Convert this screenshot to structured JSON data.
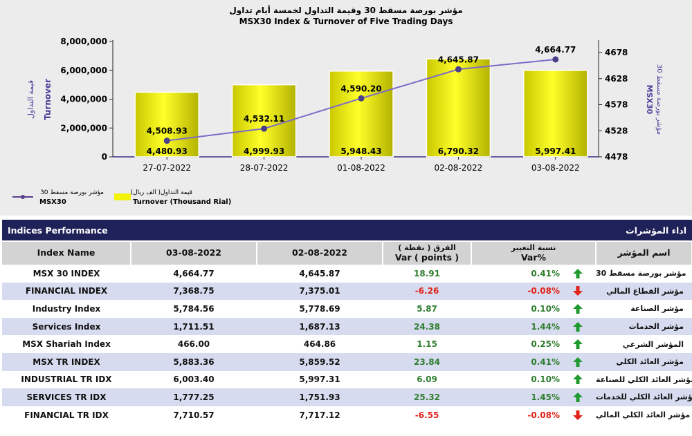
{
  "chart_data": {
    "type": "bar+line",
    "title_ar": "مؤشر بورصة مسقط 30 وقيمة التداول لخمسة أيام تداول",
    "title": "MSX30 Index & Turnover of Five Trading Days",
    "categories": [
      "27-07-2022",
      "28-07-2022",
      "01-08-2022",
      "02-08-2022",
      "03-08-2022"
    ],
    "series": [
      {
        "name": "Turnover (Thousand Rial)",
        "name_ar": "قيمة التداول( الف ريال)",
        "type": "bar",
        "axis": "left",
        "values": [
          4480.93,
          4999.93,
          5948.43,
          6790.32,
          5997.41
        ],
        "labels": [
          "4,480.93",
          "4,999.93",
          "5,948.43",
          "6,790.32",
          "5,997.41"
        ],
        "color": "#f2f20a"
      },
      {
        "name": "MSX30",
        "name_ar": "مؤشر بورصة مسقط 30",
        "type": "line",
        "axis": "right",
        "values": [
          4508.93,
          4532.11,
          4590.2,
          4645.87,
          4664.77
        ],
        "labels": [
          "4,508.93",
          "4,532.11",
          "4,590.20",
          "4,645.87",
          "4,664.77"
        ],
        "color": "#7c6bc9"
      }
    ],
    "left_axis": {
      "label": "Turnover",
      "label_ar": "قيمة التداول",
      "ticks": [
        "8,000,000",
        "6,000,000",
        "4,000,000",
        "2,000,000",
        "0"
      ],
      "tick_values": [
        8000000,
        6000000,
        4000000,
        2000000,
        0
      ]
    },
    "right_axis": {
      "label": "MSX30",
      "label_ar": "مؤشر بورصة مسقط 30",
      "ticks": [
        "4678",
        "4628",
        "4578",
        "4528",
        "4478"
      ],
      "tick_values": [
        4678,
        4628,
        4578,
        4528,
        4478
      ]
    },
    "legend_placement": "bottom-left",
    "grid": false
  },
  "performance": {
    "title_en": "Indices Performance",
    "title_ar": "اداء المؤشرات",
    "columns": {
      "index_name": "Index Name",
      "date1": "03-08-2022",
      "date2": "02-08-2022",
      "var_points_ar": "الفرق ( نقطة )",
      "var_points": "Var ( points )",
      "var_pct_ar": "نسبة التغيير",
      "var_pct": "Var%",
      "name_ar": "اسم المؤشر"
    },
    "rows": [
      {
        "name": "MSX 30 INDEX",
        "d1": "4,664.77",
        "d2": "4,645.87",
        "var": "18.91",
        "pct": "0.41%",
        "dir": "up",
        "name_ar": "مؤشر بورصة مسقط 30"
      },
      {
        "name": "FINANCIAL INDEX",
        "d1": "7,368.75",
        "d2": "7,375.01",
        "var": "-6.26",
        "pct": "-0.08%",
        "dir": "down",
        "name_ar": "مؤشر القطاع المالي"
      },
      {
        "name": "Industry Index",
        "d1": "5,784.56",
        "d2": "5,778.69",
        "var": "5.87",
        "pct": "0.10%",
        "dir": "up",
        "name_ar": "مؤشر الصناعة"
      },
      {
        "name": "Services Index",
        "d1": "1,711.51",
        "d2": "1,687.13",
        "var": "24.38",
        "pct": "1.44%",
        "dir": "up",
        "name_ar": "مؤشر الخدمات"
      },
      {
        "name": "MSX Shariah Index",
        "d1": "466.00",
        "d2": "464.86",
        "var": "1.15",
        "pct": "0.25%",
        "dir": "up",
        "name_ar": "المؤشر الشرعي"
      },
      {
        "name": "MSX TR INDEX",
        "d1": "5,883.36",
        "d2": "5,859.52",
        "var": "23.84",
        "pct": "0.41%",
        "dir": "up",
        "name_ar": "مؤشر العائد الكلي"
      },
      {
        "name": "INDUSTRIAL TR IDX",
        "d1": "6,003.40",
        "d2": "5,997.31",
        "var": "6.09",
        "pct": "0.10%",
        "dir": "up",
        "name_ar": "مؤشر العائد الكلي للصناعة"
      },
      {
        "name": "SERVICES TR IDX",
        "d1": "1,777.25",
        "d2": "1,751.93",
        "var": "25.32",
        "pct": "1.45%",
        "dir": "up",
        "name_ar": "مؤشر العائد الكلي للخدمات"
      },
      {
        "name": "FINANCIAL TR IDX",
        "d1": "7,710.57",
        "d2": "7,717.12",
        "var": "-6.55",
        "pct": "-0.08%",
        "dir": "down",
        "name_ar": "مؤشر العائد الكلي المالي"
      }
    ],
    "icons": {
      "up": "green-up-arrow-icon",
      "down": "red-down-arrow-icon"
    },
    "colors": {
      "header": "#1f2159",
      "positive": "#2e7d2e",
      "negative": "#e0241b",
      "stripe": "#d7dbef"
    }
  }
}
